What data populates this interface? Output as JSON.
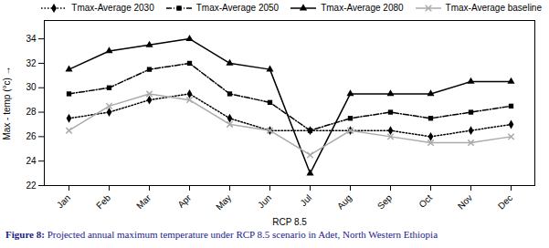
{
  "chart_data": {
    "type": "line",
    "categories": [
      "Jan",
      "Feb",
      "Mar",
      "Apr",
      "May",
      "Jun",
      "Jul",
      "Aug",
      "Sep",
      "Oct",
      "Nov",
      "Dec"
    ],
    "series": [
      {
        "name": "Tmax-Average 2030",
        "color": "#000000",
        "marker": "diamond",
        "line_style": "dotted",
        "values": [
          27.5,
          28.0,
          29.0,
          29.5,
          27.5,
          26.5,
          26.5,
          26.5,
          26.5,
          26.0,
          26.5,
          27.0
        ]
      },
      {
        "name": "Tmax-Average 2050",
        "color": "#000000",
        "marker": "square",
        "line_style": "dashdot",
        "values": [
          29.5,
          30.0,
          31.5,
          32.0,
          29.5,
          28.8,
          26.5,
          27.5,
          28.0,
          27.5,
          28.0,
          28.5
        ]
      },
      {
        "name": "Tmax-Average 2080",
        "color": "#000000",
        "marker": "triangle",
        "line_style": "solid",
        "values": [
          31.5,
          33.0,
          33.5,
          34.0,
          32.0,
          31.5,
          23.0,
          29.5,
          29.5,
          29.5,
          30.5,
          30.5
        ]
      },
      {
        "name": "Tmax-Average baseline",
        "color": "#aaaaaa",
        "marker": "x",
        "line_style": "solid",
        "values": [
          26.5,
          28.5,
          29.5,
          29.0,
          27.0,
          26.5,
          24.5,
          26.5,
          26.0,
          25.5,
          25.5,
          26.0
        ]
      }
    ],
    "xlabel": "RCP 8.5",
    "ylabel": "Max - temp (°c)",
    "ylim": [
      22,
      35.5
    ],
    "yticks": [
      22,
      24,
      26,
      28,
      30,
      32,
      34
    ],
    "caption": "Figure 8: Projected annual maximum temperature under RCP 8.5 scenario in Adet, North Western Ethiopia",
    "legend": "top",
    "grid": false
  }
}
